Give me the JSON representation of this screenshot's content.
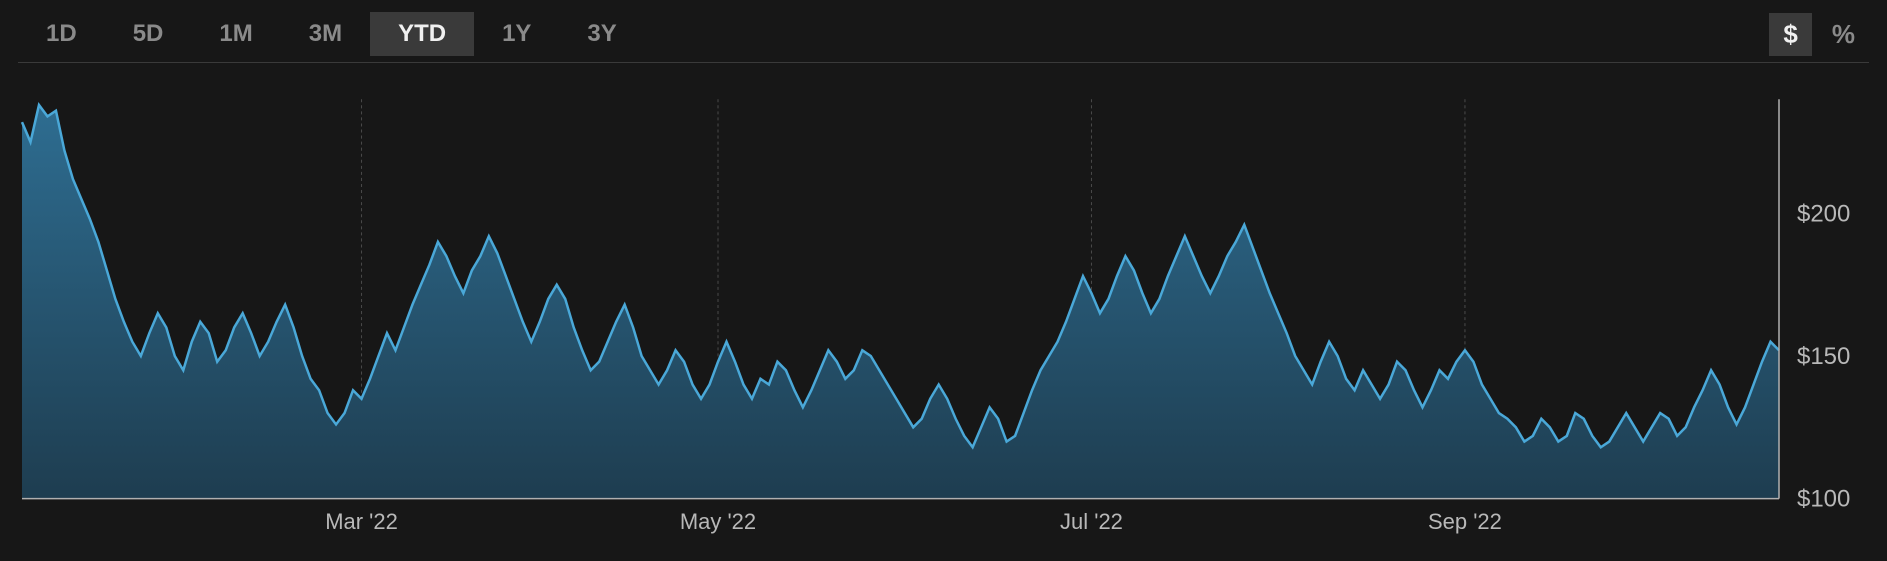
{
  "toolbar": {
    "ranges": [
      {
        "id": "1d",
        "label": "1D",
        "active": false
      },
      {
        "id": "5d",
        "label": "5D",
        "active": false
      },
      {
        "id": "1m",
        "label": "1M",
        "active": false
      },
      {
        "id": "3m",
        "label": "3M",
        "active": false
      },
      {
        "id": "ytd",
        "label": "YTD",
        "active": true
      },
      {
        "id": "1y",
        "label": "1Y",
        "active": false
      },
      {
        "id": "3y",
        "label": "3Y",
        "active": false
      }
    ],
    "units": [
      {
        "id": "dollar",
        "label": "$",
        "active": true
      },
      {
        "id": "percent",
        "label": "%",
        "active": false
      }
    ]
  },
  "chart": {
    "type": "area",
    "background_color": "#171717",
    "line_color": "#4aa8d8",
    "line_width": 2.5,
    "fill_gradient_top": "#2e6d91",
    "fill_gradient_bottom": "#1e3d50",
    "grid_color": "#4a4a4a",
    "axis_color": "#b0b0b0",
    "label_color": "#b8b8b8",
    "y_label_fontsize": 24,
    "x_label_fontsize": 22,
    "ylim": [
      100,
      240
    ],
    "yticks": [
      {
        "value": 100,
        "label": "$100"
      },
      {
        "value": 150,
        "label": "$150"
      },
      {
        "value": 200,
        "label": "$200"
      }
    ],
    "xticks": [
      {
        "index": 40,
        "label": "Mar '22"
      },
      {
        "index": 82,
        "label": "May '22"
      },
      {
        "index": 126,
        "label": "Jul '22"
      },
      {
        "index": 170,
        "label": "Sep '22"
      }
    ],
    "values": [
      232,
      225,
      238,
      234,
      236,
      222,
      212,
      205,
      198,
      190,
      180,
      170,
      162,
      155,
      150,
      158,
      165,
      160,
      150,
      145,
      155,
      162,
      158,
      148,
      152,
      160,
      165,
      158,
      150,
      155,
      162,
      168,
      160,
      150,
      142,
      138,
      130,
      126,
      130,
      138,
      135,
      142,
      150,
      158,
      152,
      160,
      168,
      175,
      182,
      190,
      185,
      178,
      172,
      180,
      185,
      192,
      186,
      178,
      170,
      162,
      155,
      162,
      170,
      175,
      170,
      160,
      152,
      145,
      148,
      155,
      162,
      168,
      160,
      150,
      145,
      140,
      145,
      152,
      148,
      140,
      135,
      140,
      148,
      155,
      148,
      140,
      135,
      142,
      140,
      148,
      145,
      138,
      132,
      138,
      145,
      152,
      148,
      142,
      145,
      152,
      150,
      145,
      140,
      135,
      130,
      125,
      128,
      135,
      140,
      135,
      128,
      122,
      118,
      125,
      132,
      128,
      120,
      122,
      130,
      138,
      145,
      150,
      155,
      162,
      170,
      178,
      172,
      165,
      170,
      178,
      185,
      180,
      172,
      165,
      170,
      178,
      185,
      192,
      185,
      178,
      172,
      178,
      185,
      190,
      196,
      188,
      180,
      172,
      165,
      158,
      150,
      145,
      140,
      148,
      155,
      150,
      142,
      138,
      145,
      140,
      135,
      140,
      148,
      145,
      138,
      132,
      138,
      145,
      142,
      148,
      152,
      148,
      140,
      135,
      130,
      128,
      125,
      120,
      122,
      128,
      125,
      120,
      122,
      130,
      128,
      122,
      118,
      120,
      125,
      130,
      125,
      120,
      125,
      130,
      128,
      122,
      125,
      132,
      138,
      145,
      140,
      132,
      126,
      132,
      140,
      148,
      155,
      152
    ]
  }
}
